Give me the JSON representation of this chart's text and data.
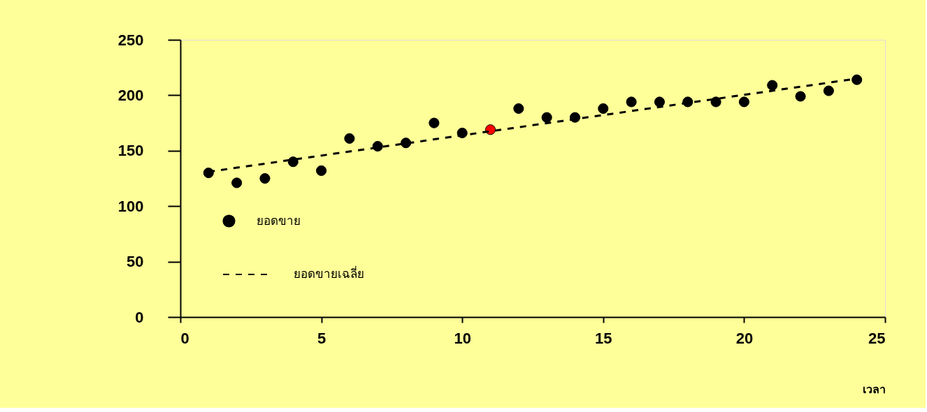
{
  "chart_data": {
    "type": "scatter",
    "xlabel": "เวลา",
    "xlim": [
      0,
      25
    ],
    "xticks": [
      0,
      5,
      10,
      15,
      20,
      25
    ],
    "ylim": [
      0,
      250
    ],
    "yticks": [
      0,
      50,
      100,
      150,
      200,
      250
    ],
    "grid": false,
    "legend": "left",
    "marker": "circle",
    "series": [
      {
        "name": "ยอดขาย",
        "x": [
          1,
          2,
          3,
          4,
          5,
          6,
          7,
          8,
          9,
          10,
          11,
          12,
          13,
          14,
          15,
          16,
          17,
          18,
          19,
          20,
          21,
          22,
          23,
          24
        ],
        "values": [
          130,
          121,
          125,
          140,
          132,
          161,
          154,
          157,
          175,
          166,
          169,
          188,
          180,
          180,
          188,
          194,
          194,
          194,
          194,
          194,
          209,
          199,
          204,
          214
        ],
        "colors": [
          "#000000",
          "#000000",
          "#000000",
          "#000000",
          "#000000",
          "#000000",
          "#000000",
          "#000000",
          "#000000",
          "#000000",
          "#ff0000",
          "#000000",
          "#000000",
          "#000000",
          "#000000",
          "#000000",
          "#000000",
          "#000000",
          "#000000",
          "#000000",
          "#000000",
          "#000000",
          "#000000",
          "#000000"
        ]
      },
      {
        "name": "ยอดขายเฉลี่ย",
        "type": "line",
        "color": "#000000",
        "line_style": "dashed",
        "marker": "none",
        "x": [
          1,
          24
        ],
        "values": [
          131,
          215
        ]
      }
    ]
  }
}
